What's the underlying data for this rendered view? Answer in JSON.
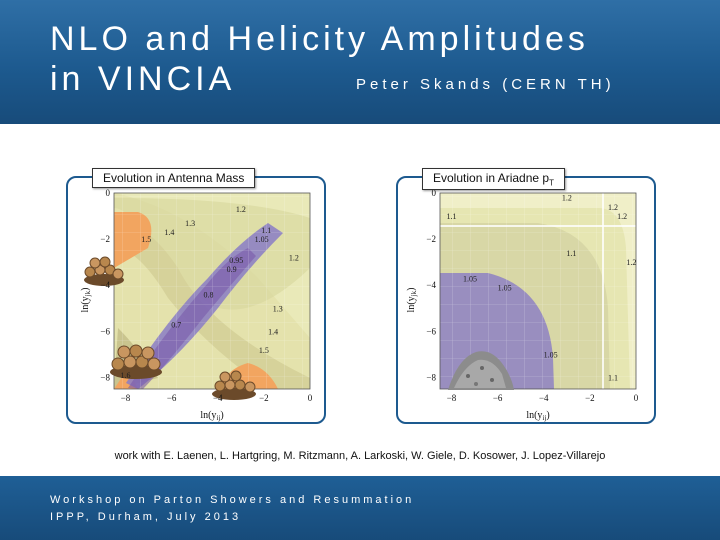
{
  "header": {
    "title_line1": "NLO and Helicity Amplitudes",
    "title_line2": "in VINCIA",
    "author": "Peter Skands (CERN TH)"
  },
  "credits": "work with E. Laenen, L. Hartgring, M. Ritzmann, A. Larkoski, W. Giele, D. Kosower, J. Lopez-Villarejo",
  "footer": {
    "line1": "Workshop on Parton Showers and Resummation",
    "line2": "IPPP, Durham, July 2013"
  },
  "colors": {
    "header": "#1d5a8f",
    "purple": "#8a7cc6",
    "orange": "#f2a560",
    "yellow": "#e8e8a8"
  },
  "chart_data": [
    {
      "type": "heatmap",
      "title": "Evolution in Antenna Mass",
      "xlabel": "ln(y_ij)",
      "ylabel": "ln(y_jk)",
      "xlim": [
        -8.5,
        0
      ],
      "ylim": [
        -8.5,
        0
      ],
      "xticks": [
        "−8",
        "−6",
        "−4",
        "−2",
        "0"
      ],
      "yticks": [
        "0",
        "−2",
        "−4",
        "−6",
        "−8"
      ],
      "contour_labels": [
        {
          "text": "1.2",
          "x": -3,
          "y": -0.7
        },
        {
          "text": "1.3",
          "x": -5.2,
          "y": -1.3
        },
        {
          "text": "1.4",
          "x": -6.1,
          "y": -1.7
        },
        {
          "text": "1.5",
          "x": -7.1,
          "y": -2.0
        },
        {
          "text": "1.1",
          "x": -1.9,
          "y": -1.6
        },
        {
          "text": "1.05",
          "x": -2.1,
          "y": -2.0
        },
        {
          "text": "1.2",
          "x": -0.7,
          "y": -2.8
        },
        {
          "text": "0.95",
          "x": -3.2,
          "y": -2.9
        },
        {
          "text": "0.9",
          "x": -3.4,
          "y": -3.3
        },
        {
          "text": "0.8",
          "x": -4.4,
          "y": -4.4
        },
        {
          "text": "1.3",
          "x": -1.4,
          "y": -5.0
        },
        {
          "text": "0.7",
          "x": -5.8,
          "y": -5.7
        },
        {
          "text": "1.4",
          "x": -1.6,
          "y": -6.0
        },
        {
          "text": "1.5",
          "x": -2.0,
          "y": -6.8
        },
        {
          "text": "1.6",
          "x": -8.0,
          "y": -7.9
        }
      ]
    },
    {
      "type": "heatmap",
      "title": "Evolution in Ariadne p",
      "title_sub": "T",
      "xlabel": "ln(y_ij)",
      "ylabel": "ln(y_jk)",
      "xlim": [
        -8.5,
        0
      ],
      "ylim": [
        -8.5,
        0
      ],
      "xticks": [
        "−8",
        "−6",
        "−4",
        "−2",
        "0"
      ],
      "yticks": [
        "0",
        "−2",
        "−4",
        "−6",
        "−8"
      ],
      "contour_labels": [
        {
          "text": "1.2",
          "x": -3,
          "y": -0.2
        },
        {
          "text": "1.2",
          "x": -1.0,
          "y": -0.6
        },
        {
          "text": "1.2",
          "x": -0.6,
          "y": -1.0
        },
        {
          "text": "1.1",
          "x": -8.0,
          "y": -1.0
        },
        {
          "text": "1.1",
          "x": -2.8,
          "y": -2.6
        },
        {
          "text": "1.2",
          "x": -0.2,
          "y": -3.0
        },
        {
          "text": "1.05",
          "x": -7.2,
          "y": -3.7
        },
        {
          "text": "1.05",
          "x": -5.7,
          "y": -4.1
        },
        {
          "text": "1.05",
          "x": -3.7,
          "y": -7.0
        },
        {
          "text": "1.1",
          "x": -1.0,
          "y": -8.0
        }
      ]
    }
  ]
}
